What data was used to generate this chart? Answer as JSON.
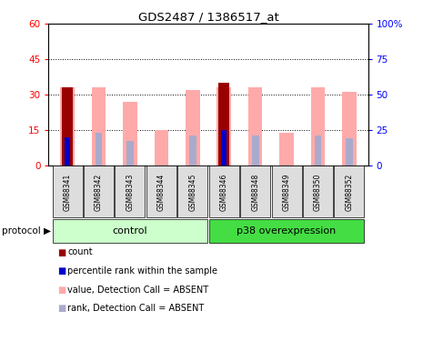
{
  "title": "GDS2487 / 1386517_at",
  "samples": [
    "GSM88341",
    "GSM88342",
    "GSM88343",
    "GSM88344",
    "GSM88345",
    "GSM88346",
    "GSM88348",
    "GSM88349",
    "GSM88350",
    "GSM88352"
  ],
  "count_values": [
    33,
    0,
    0,
    0,
    0,
    35,
    0,
    0,
    0,
    0
  ],
  "percentile_values": [
    20,
    0,
    0,
    0,
    0,
    25,
    0,
    0,
    0,
    0
  ],
  "absent_value_values": [
    33,
    33,
    27,
    15,
    32,
    33,
    33,
    14,
    33,
    31
  ],
  "absent_rank_values": [
    20,
    23,
    17,
    0,
    21,
    25,
    21,
    0,
    21,
    19
  ],
  "ylim_left": [
    0,
    60
  ],
  "ylim_right": [
    0,
    100
  ],
  "yticks_left": [
    0,
    15,
    30,
    45,
    60
  ],
  "yticks_right": [
    0,
    25,
    50,
    75,
    100
  ],
  "ytick_labels_left": [
    "0",
    "15",
    "30",
    "45",
    "60"
  ],
  "ytick_labels_right": [
    "0",
    "25",
    "50",
    "75",
    "100%"
  ],
  "color_count": "#990000",
  "color_percentile": "#0000cc",
  "color_absent_value": "#ffaaaa",
  "color_absent_rank": "#aaaacc",
  "color_control_bg": "#ccffcc",
  "color_p38_bg": "#44dd44",
  "color_tick_bg": "#dddddd",
  "group_labels": [
    "control",
    "p38 overexpression"
  ],
  "legend_items": [
    {
      "label": "count",
      "color": "#990000"
    },
    {
      "label": "percentile rank within the sample",
      "color": "#0000cc"
    },
    {
      "label": "value, Detection Call = ABSENT",
      "color": "#ffaaaa"
    },
    {
      "label": "rank, Detection Call = ABSENT",
      "color": "#aaaacc"
    }
  ]
}
